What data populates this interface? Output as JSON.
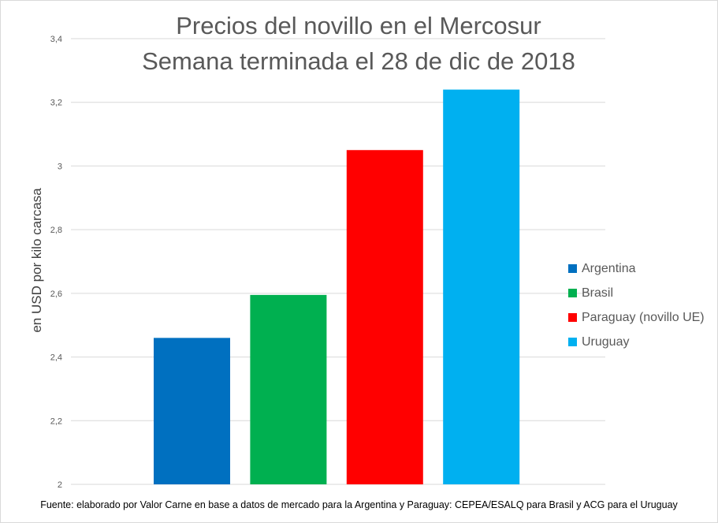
{
  "chart_data": {
    "type": "bar",
    "title_lines": [
      "Precios del novillo en el Mercosur",
      "Semana terminada el 28 de dic de 2018"
    ],
    "xlabel": "",
    "ylabel": "en USD por kilo carcasa",
    "ylim": [
      2,
      3.4
    ],
    "yticks": [
      {
        "value": 2,
        "label": "2"
      },
      {
        "value": 2.2,
        "label": "2,2"
      },
      {
        "value": 2.4,
        "label": "2,4"
      },
      {
        "value": 2.6,
        "label": "2,6"
      },
      {
        "value": 2.8,
        "label": "2,8"
      },
      {
        "value": 3,
        "label": "3"
      },
      {
        "value": 3.2,
        "label": "3,2"
      },
      {
        "value": 3.4,
        "label": "3,4"
      }
    ],
    "grid": true,
    "legend_position": "right",
    "series": [
      {
        "name": "Argentina",
        "value": 2.46,
        "color": "#0070c0"
      },
      {
        "name": "Brasil",
        "value": 2.595,
        "color": "#00b050"
      },
      {
        "name": "Paraguay (novillo UE)",
        "value": 3.05,
        "color": "#ff0000"
      },
      {
        "name": "Uruguay",
        "value": 3.24,
        "color": "#00b0f0"
      }
    ],
    "source": "Fuente: elaborado por Valor Carne en base a datos de mercado para la Argentina y Paraguay: CEPEA/ESALQ para Brasil y ACG para el Uruguay"
  }
}
